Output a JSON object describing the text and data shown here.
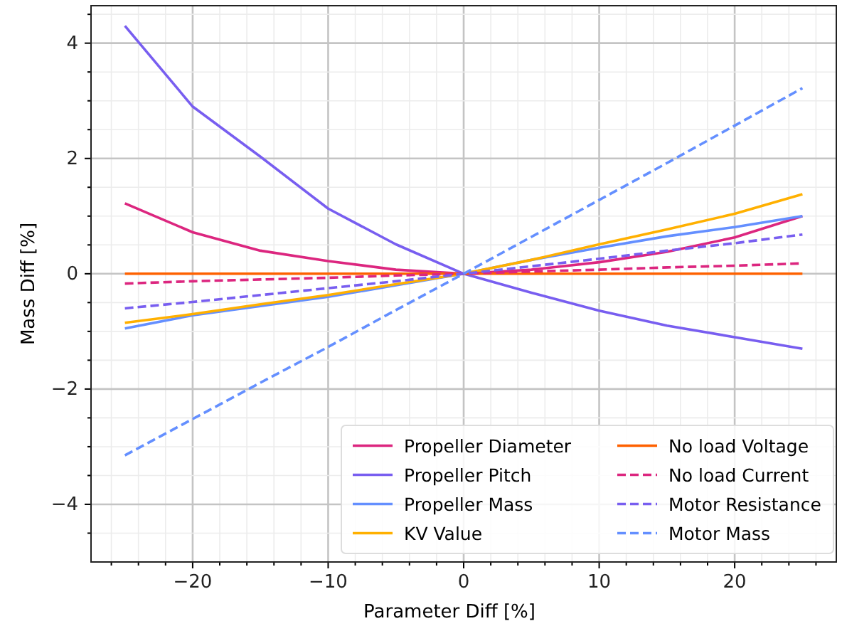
{
  "chart_data": {
    "type": "line",
    "xlabel": "Parameter Diff [%]",
    "ylabel": "Mass Diff [%]",
    "xlim": [
      -27.5,
      27.5
    ],
    "ylim": [
      -5,
      4.65
    ],
    "xticks": [
      {
        "value": -26,
        "label": null
      },
      {
        "value": -24,
        "label": null
      },
      {
        "value": -22,
        "label": null
      },
      {
        "value": -20,
        "label": "−20"
      },
      {
        "value": -18,
        "label": null
      },
      {
        "value": -16,
        "label": null
      },
      {
        "value": -14,
        "label": null
      },
      {
        "value": -12,
        "label": null
      },
      {
        "value": -10,
        "label": "−10"
      },
      {
        "value": -8,
        "label": null
      },
      {
        "value": -6,
        "label": null
      },
      {
        "value": -4,
        "label": null
      },
      {
        "value": -2,
        "label": null
      },
      0,
      {
        "value": 2,
        "label": null
      },
      {
        "value": 4,
        "label": null
      },
      {
        "value": 6,
        "label": null
      },
      {
        "value": 8,
        "label": null
      },
      10,
      {
        "value": 12,
        "label": null
      },
      {
        "value": 14,
        "label": null
      },
      {
        "value": 16,
        "label": null
      },
      {
        "value": 18,
        "label": null
      },
      20,
      {
        "value": 22,
        "label": null
      },
      {
        "value": 24,
        "label": null
      },
      {
        "value": 26,
        "label": null
      }
    ],
    "yticks": [
      {
        "value": -4.5,
        "label": null
      },
      {
        "value": -4,
        "label": "−4"
      },
      {
        "value": -3.5,
        "label": null
      },
      {
        "value": -3,
        "label": null
      },
      {
        "value": -2.5,
        "label": null
      },
      {
        "value": -2,
        "label": "−2"
      },
      {
        "value": -1.5,
        "label": null
      },
      {
        "value": -1,
        "label": null
      },
      {
        "value": -0.5,
        "label": null
      },
      0,
      {
        "value": 0.5,
        "label": null
      },
      {
        "value": 1,
        "label": null
      },
      {
        "value": 1.5,
        "label": null
      },
      2,
      {
        "value": 2.5,
        "label": null
      },
      {
        "value": 3,
        "label": null
      },
      {
        "value": 3.5,
        "label": null
      },
      4,
      {
        "value": 4.5,
        "label": null
      }
    ],
    "grid": true,
    "legend": "bottom right",
    "x": [
      -25,
      -20,
      -15,
      -10,
      -5,
      0,
      5,
      10,
      15,
      20,
      25
    ],
    "series": [
      {
        "name": "Propeller Diameter",
        "color": "#dc267f",
        "line_style": "solid",
        "values": [
          1.22,
          0.72,
          0.4,
          0.22,
          0.07,
          0,
          0.07,
          0.2,
          0.38,
          0.63,
          1.0
        ]
      },
      {
        "name": "Propeller Pitch",
        "color": "#785ef0",
        "line_style": "solid",
        "values": [
          4.3,
          2.9,
          2.03,
          1.13,
          0.51,
          0,
          -0.33,
          -0.64,
          -0.9,
          -1.1,
          -1.3
        ]
      },
      {
        "name": "Propeller Mass",
        "color": "#648fff",
        "line_style": "solid",
        "values": [
          -0.95,
          -0.72,
          -0.56,
          -0.4,
          -0.2,
          0,
          0.24,
          0.45,
          0.65,
          0.81,
          1.0
        ]
      },
      {
        "name": "KV Value",
        "color": "#ffb000",
        "line_style": "solid",
        "values": [
          -0.85,
          -0.7,
          -0.53,
          -0.37,
          -0.18,
          0,
          0.24,
          0.51,
          0.77,
          1.04,
          1.38
        ]
      },
      {
        "name": "No load Voltage",
        "color": "#fe6100",
        "line_style": "solid",
        "values": [
          0,
          0,
          0,
          0,
          0,
          0,
          0,
          0,
          0,
          0,
          0
        ]
      },
      {
        "name": "No load Current",
        "color": "#dc267f",
        "line_style": "dashed",
        "values": [
          -0.17,
          -0.13,
          -0.1,
          -0.07,
          -0.03,
          0,
          0.04,
          0.07,
          0.11,
          0.14,
          0.18
        ]
      },
      {
        "name": "Motor Resistance",
        "color": "#785ef0",
        "line_style": "dashed",
        "values": [
          -0.6,
          -0.49,
          -0.37,
          -0.25,
          -0.13,
          0,
          0.13,
          0.26,
          0.4,
          0.53,
          0.68
        ]
      },
      {
        "name": "Motor Mass",
        "color": "#648fff",
        "line_style": "dashed",
        "values": [
          -3.15,
          -2.52,
          -1.89,
          -1.27,
          -0.63,
          0,
          0.64,
          1.28,
          1.92,
          2.57,
          3.22
        ]
      }
    ]
  }
}
